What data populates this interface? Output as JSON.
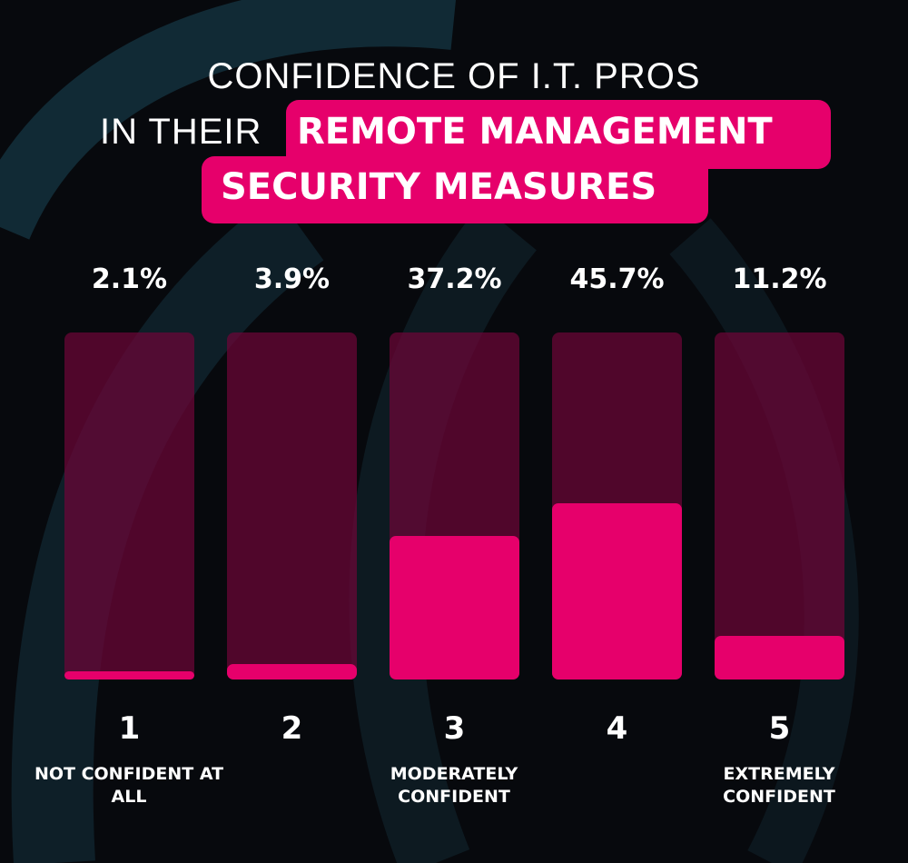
{
  "chart_data": {
    "type": "bar",
    "title_line1": "CONFIDENCE OF I.T. PROS",
    "title_line2_plain": "IN THEIR",
    "title_line2_highlight": "REMOTE MANAGEMENT",
    "title_line3_highlight": "SECURITY MEASURES",
    "categories": [
      "1",
      "2",
      "3",
      "4",
      "5"
    ],
    "category_descriptions": [
      "NOT CONFIDENT AT ALL",
      "",
      "MODERATELY CONFIDENT",
      "",
      "EXTREMELY CONFIDENT"
    ],
    "values": [
      2.1,
      3.9,
      37.2,
      45.7,
      11.2
    ],
    "data_labels": [
      "2.1%",
      "3.9%",
      "37.2%",
      "45.7%",
      "11.2%"
    ],
    "ylim": [
      0,
      90
    ],
    "grid": false,
    "colors": {
      "bar": "#e6006b",
      "track": "#5a0530",
      "background": "#07090d",
      "highlight": "#e6006b"
    }
  }
}
